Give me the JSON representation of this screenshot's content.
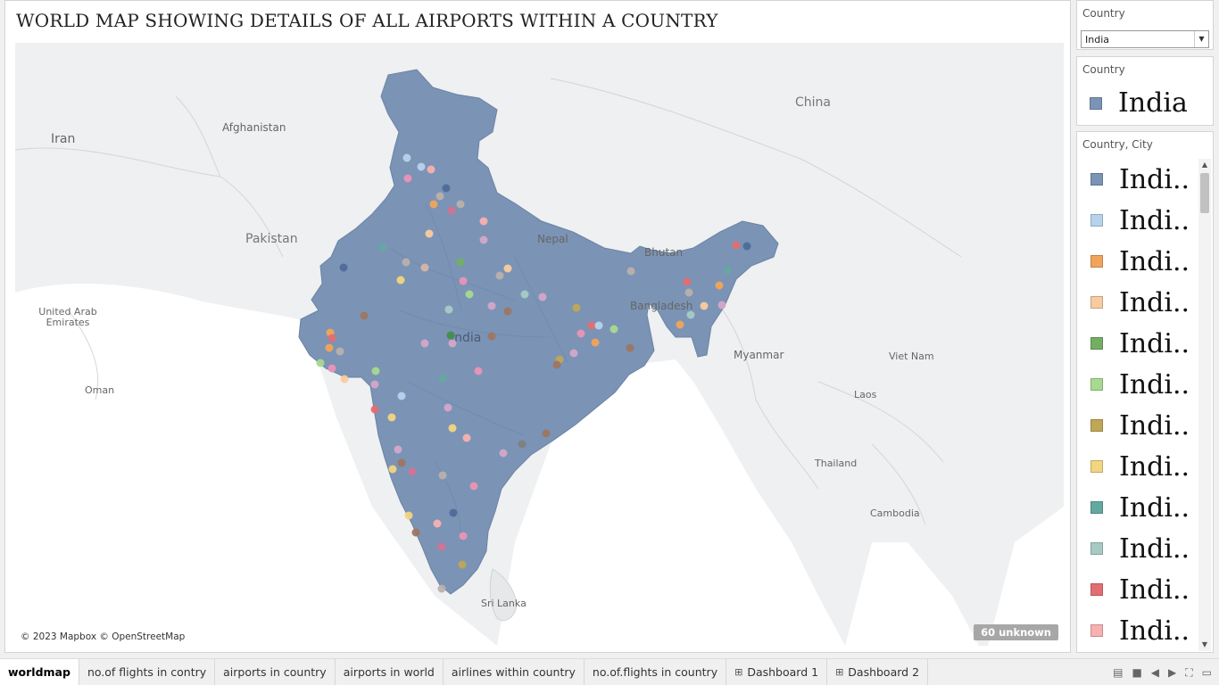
{
  "title": "WORLD MAP SHOWING DETAILS OF ALL AIRPORTS WITHIN A COUNTRY",
  "map": {
    "labels": {
      "china": "China",
      "iran": "Iran",
      "afghanistan": "Afghanistan",
      "pakistan": "Pakistan",
      "nepal": "Nepal",
      "bhutan": "Bhutan",
      "bangladesh": "Bangladesh",
      "india": "India",
      "myanmar": "Myanmar",
      "vietnam": "Viet Nam",
      "laos": "Laos",
      "thailand": "Thailand",
      "cambodia": "Cambodia",
      "uae": "United Arab Emirates",
      "oman": "Oman",
      "srilanka": "Sri Lanka"
    },
    "copyright": "© 2023 Mapbox © OpenStreetMap",
    "unknown_badge": "60 unknown",
    "highlight_color": "#7b93b5"
  },
  "filter": {
    "title": "Country",
    "selected": "India"
  },
  "legend_country": {
    "title": "Country",
    "item": "India",
    "color": "#7b93b5"
  },
  "legend_city": {
    "title": "Country, City",
    "items": [
      {
        "label": "Indi..",
        "color": "#7b93b5"
      },
      {
        "label": "Indi..",
        "color": "#b6d2ec"
      },
      {
        "label": "Indi..",
        "color": "#f1a45a"
      },
      {
        "label": "Indi..",
        "color": "#f9cba0"
      },
      {
        "label": "Indi..",
        "color": "#73ae64"
      },
      {
        "label": "Indi..",
        "color": "#a7d98f"
      },
      {
        "label": "Indi..",
        "color": "#bfa757"
      },
      {
        "label": "Indi..",
        "color": "#f2d57f"
      },
      {
        "label": "Indi..",
        "color": "#63a99f"
      },
      {
        "label": "Indi..",
        "color": "#a6cbc4"
      },
      {
        "label": "Indi..",
        "color": "#e36e72"
      },
      {
        "label": "Indi..",
        "color": "#f9b0b0"
      }
    ]
  },
  "tabs": [
    {
      "label": "worldmap",
      "active": true,
      "icon": ""
    },
    {
      "label": "no.of flights in contry",
      "active": false,
      "icon": ""
    },
    {
      "label": "airports in country",
      "active": false,
      "icon": ""
    },
    {
      "label": "airports in world",
      "active": false,
      "icon": ""
    },
    {
      "label": "airlines within country",
      "active": false,
      "icon": ""
    },
    {
      "label": "no.of.flights in country",
      "active": false,
      "icon": ""
    },
    {
      "label": "Dashboard 1",
      "active": false,
      "icon": "dashboard-icon"
    },
    {
      "label": "Dashboard 2",
      "active": false,
      "icon": "dashboard-icon"
    }
  ]
}
